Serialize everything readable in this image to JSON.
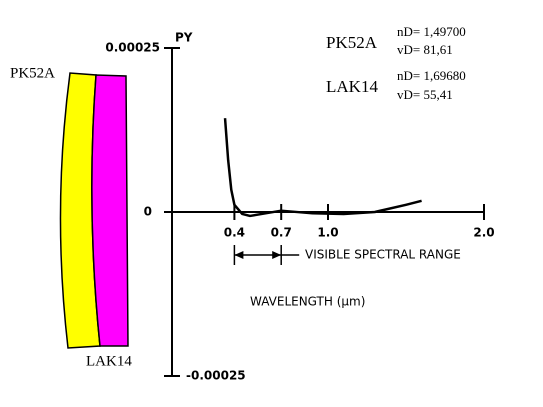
{
  "chart_data": {
    "type": "line",
    "y_label": "PY",
    "x_label": "WAVELENGTH (μm)",
    "annotation": "VISIBLE SPECTRAL RANGE",
    "xlim": [
      0,
      2.0
    ],
    "ylim": [
      -0.00025,
      0.00025
    ],
    "xticks": [
      0.4,
      0.7,
      {
        "value": 1,
        "label": "1.0"
      },
      {
        "value": 2,
        "label": "2.0"
      }
    ],
    "yticks": [
      -0.00025,
      0,
      0.00025
    ],
    "x": [
      0.34,
      0.36,
      0.38,
      0.4,
      0.45,
      0.5,
      0.6,
      0.7,
      0.9,
      1.1,
      1.3,
      1.5,
      1.6
    ],
    "series": [
      {
        "color": "#000000",
        "values": [
          0.000143,
          7.9e-05,
          3.4e-05,
          1.1e-05,
          -3e-06,
          -6e-06,
          -2e-06,
          2e-06,
          -2e-06,
          -3e-06,
          0,
          1.1e-05,
          1.7e-05
        ]
      }
    ],
    "glasses": [
      {
        "name": "PK52A",
        "nd": "nD= 1,49700",
        "vd": "vD= 81,61"
      },
      {
        "name": "LAK14",
        "nd": "nD= 1,69680",
        "vd": "vD= 55,41"
      }
    ]
  }
}
